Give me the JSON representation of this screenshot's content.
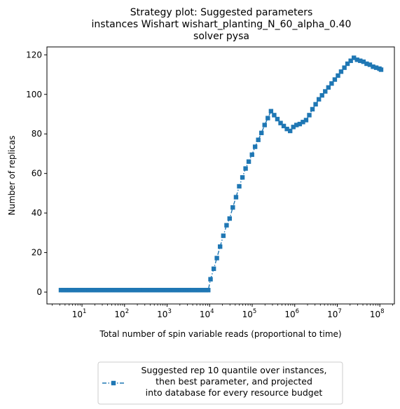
{
  "chart_data": {
    "type": "line",
    "title_lines": [
      "Strategy plot: Suggested parameters",
      "instances Wishart wishart_planting_N_60_alpha_0.40",
      "solver pysa"
    ],
    "xlabel": "Total number of spin variable reads (proportional to time)",
    "ylabel": "Number of replicas",
    "x_scale": "log",
    "xlim": [
      1.5,
      220000000
    ],
    "ylim": [
      -6,
      124
    ],
    "x_ticks": [
      {
        "value": 10,
        "base": "10",
        "exp": "1"
      },
      {
        "value": 100,
        "base": "10",
        "exp": "2"
      },
      {
        "value": 1000,
        "base": "10",
        "exp": "3"
      },
      {
        "value": 10000,
        "base": "10",
        "exp": "4"
      },
      {
        "value": 100000,
        "base": "10",
        "exp": "5"
      },
      {
        "value": 1000000,
        "base": "10",
        "exp": "6"
      },
      {
        "value": 10000000,
        "base": "10",
        "exp": "7"
      },
      {
        "value": 100000000,
        "base": "10",
        "exp": "8"
      }
    ],
    "y_ticks": [
      0,
      20,
      40,
      60,
      80,
      100,
      120
    ],
    "grid": false,
    "legend_position": "bottom-center, below plot",
    "series": [
      {
        "name_lines": [
          "Suggested rep 10 quantile over instances,",
          "then best parameter, and projected",
          "into database for every resource budget"
        ],
        "color": "#1f77b4",
        "marker": "square",
        "line_style": "dash-dot",
        "points": [
          [
            3.2,
            1
          ],
          [
            3.6,
            1
          ],
          [
            4.1,
            1
          ],
          [
            4.6,
            1
          ],
          [
            5.2,
            1
          ],
          [
            5.9,
            1
          ],
          [
            6.7,
            1
          ],
          [
            7.6,
            1
          ],
          [
            8.6,
            1
          ],
          [
            9.8,
            1
          ],
          [
            11,
            1
          ],
          [
            12.5,
            1
          ],
          [
            14.2,
            1
          ],
          [
            16,
            1
          ],
          [
            18.2,
            1
          ],
          [
            20.6,
            1
          ],
          [
            23.4,
            1
          ],
          [
            26.5,
            1
          ],
          [
            30,
            1
          ],
          [
            34,
            1
          ],
          [
            38.5,
            1
          ],
          [
            43.6,
            1
          ],
          [
            49.4,
            1
          ],
          [
            56,
            1
          ],
          [
            63.4,
            1
          ],
          [
            71.8,
            1
          ],
          [
            81.3,
            1
          ],
          [
            92.1,
            1
          ],
          [
            104,
            1
          ],
          [
            118,
            1
          ],
          [
            134,
            1
          ],
          [
            152,
            1
          ],
          [
            172,
            1
          ],
          [
            195,
            1
          ],
          [
            221,
            1
          ],
          [
            250,
            1
          ],
          [
            283,
            1
          ],
          [
            321,
            1
          ],
          [
            363,
            1
          ],
          [
            411,
            1
          ],
          [
            466,
            1
          ],
          [
            528,
            1
          ],
          [
            598,
            1
          ],
          [
            677,
            1
          ],
          [
            767,
            1
          ],
          [
            869,
            1
          ],
          [
            984,
            1
          ],
          [
            1115,
            1
          ],
          [
            1263,
            1
          ],
          [
            1430,
            1
          ],
          [
            1620,
            1
          ],
          [
            1835,
            1
          ],
          [
            2079,
            1
          ],
          [
            2355,
            1
          ],
          [
            2667,
            1
          ],
          [
            3021,
            1
          ],
          [
            3422,
            1
          ],
          [
            3876,
            1
          ],
          [
            4390,
            1
          ],
          [
            4973,
            1
          ],
          [
            5633,
            1
          ],
          [
            6380,
            1
          ],
          [
            7227,
            1
          ],
          [
            8186,
            1
          ],
          [
            9272,
            1
          ],
          [
            10500,
            6.5
          ],
          [
            12500,
            11.8
          ],
          [
            14800,
            17.2
          ],
          [
            17600,
            23
          ],
          [
            21000,
            28.5
          ],
          [
            25000,
            33.8
          ],
          [
            29500,
            37.2
          ],
          [
            35000,
            42.8
          ],
          [
            41700,
            48
          ],
          [
            49600,
            53.5
          ],
          [
            59000,
            58
          ],
          [
            70000,
            62.5
          ],
          [
            83000,
            66
          ],
          [
            99000,
            69.5
          ],
          [
            117000,
            73.5
          ],
          [
            139000,
            77
          ],
          [
            165000,
            80.5
          ],
          [
            196000,
            84.5
          ],
          [
            233000,
            88
          ],
          [
            277000,
            91.5
          ],
          [
            329000,
            89.5
          ],
          [
            391000,
            87.5
          ],
          [
            465000,
            85.5
          ],
          [
            552000,
            84
          ],
          [
            656000,
            82.5
          ],
          [
            780000,
            81.5
          ],
          [
            927000,
            83.5
          ],
          [
            1100000,
            84.5
          ],
          [
            1310000,
            85
          ],
          [
            1560000,
            86
          ],
          [
            1850000,
            87
          ],
          [
            2200000,
            89.5
          ],
          [
            2610000,
            92.5
          ],
          [
            3100000,
            95
          ],
          [
            3690000,
            97.5
          ],
          [
            4380000,
            99.5
          ],
          [
            5210000,
            101.5
          ],
          [
            6190000,
            103.5
          ],
          [
            7360000,
            105.5
          ],
          [
            8740000,
            107.5
          ],
          [
            10400000,
            109.5
          ],
          [
            12300000,
            111.5
          ],
          [
            14700000,
            113.5
          ],
          [
            17400000,
            115.5
          ],
          [
            20700000,
            117
          ],
          [
            24600000,
            118.5
          ],
          [
            29200000,
            117.5
          ],
          [
            34700000,
            117
          ],
          [
            41300000,
            116.5
          ],
          [
            49000000,
            115.5
          ],
          [
            58300000,
            115
          ],
          [
            69300000,
            114
          ],
          [
            82300000,
            113.5
          ],
          [
            97800000,
            113
          ],
          [
            107000000,
            112.5
          ]
        ]
      }
    ]
  }
}
